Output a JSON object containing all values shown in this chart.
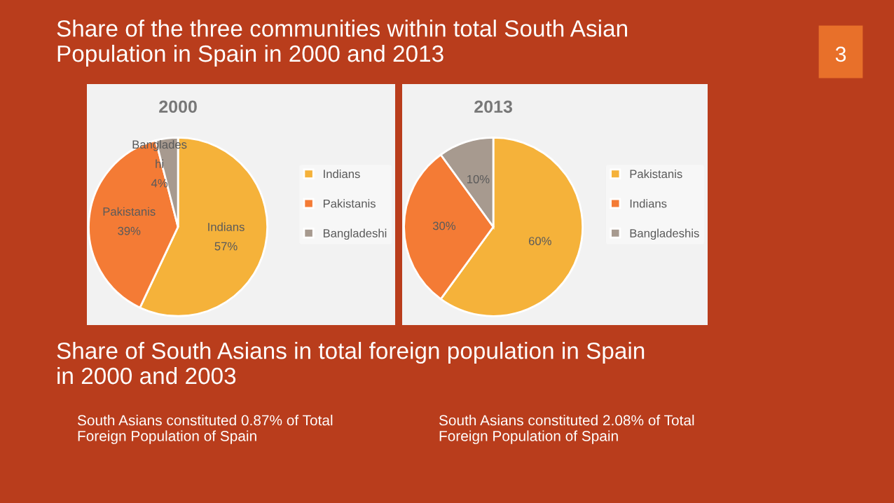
{
  "chart_data": [
    {
      "type": "pie",
      "title": "2000",
      "categories": [
        "Indians",
        "Pakistanis",
        "Bangladeshi"
      ],
      "values": [
        57,
        39,
        4
      ],
      "colors": [
        "#f5b23a",
        "#f47b35",
        "#a79a8f"
      ],
      "value_labels": [
        "Indians\n57%",
        "Pakistanis\n39%",
        "Banglades\nhi\n4%"
      ],
      "legend": "right",
      "annotations": [
        "Share of the three communities within total South Asian\nPopulation in Spain in 2000 and 2013",
        "3",
        "Share of South Asians in total foreign population in Spain\nin 2000 and 2003",
        "South Asians constituted 0.87% of Total\nForeign Population of Spain"
      ]
    },
    {
      "type": "pie",
      "title": "2013",
      "categories": [
        "Pakistanis",
        "Indians",
        "Bangladeshis"
      ],
      "values": [
        60,
        30,
        10
      ],
      "colors": [
        "#f5b23a",
        "#f47b35",
        "#a79a8f"
      ],
      "value_labels": [
        "60%",
        "30%",
        "10%"
      ],
      "legend": "right",
      "annotations": [
        "South Asians constituted 2.08% of Total\nForeign Population of Spain"
      ]
    }
  ]
}
